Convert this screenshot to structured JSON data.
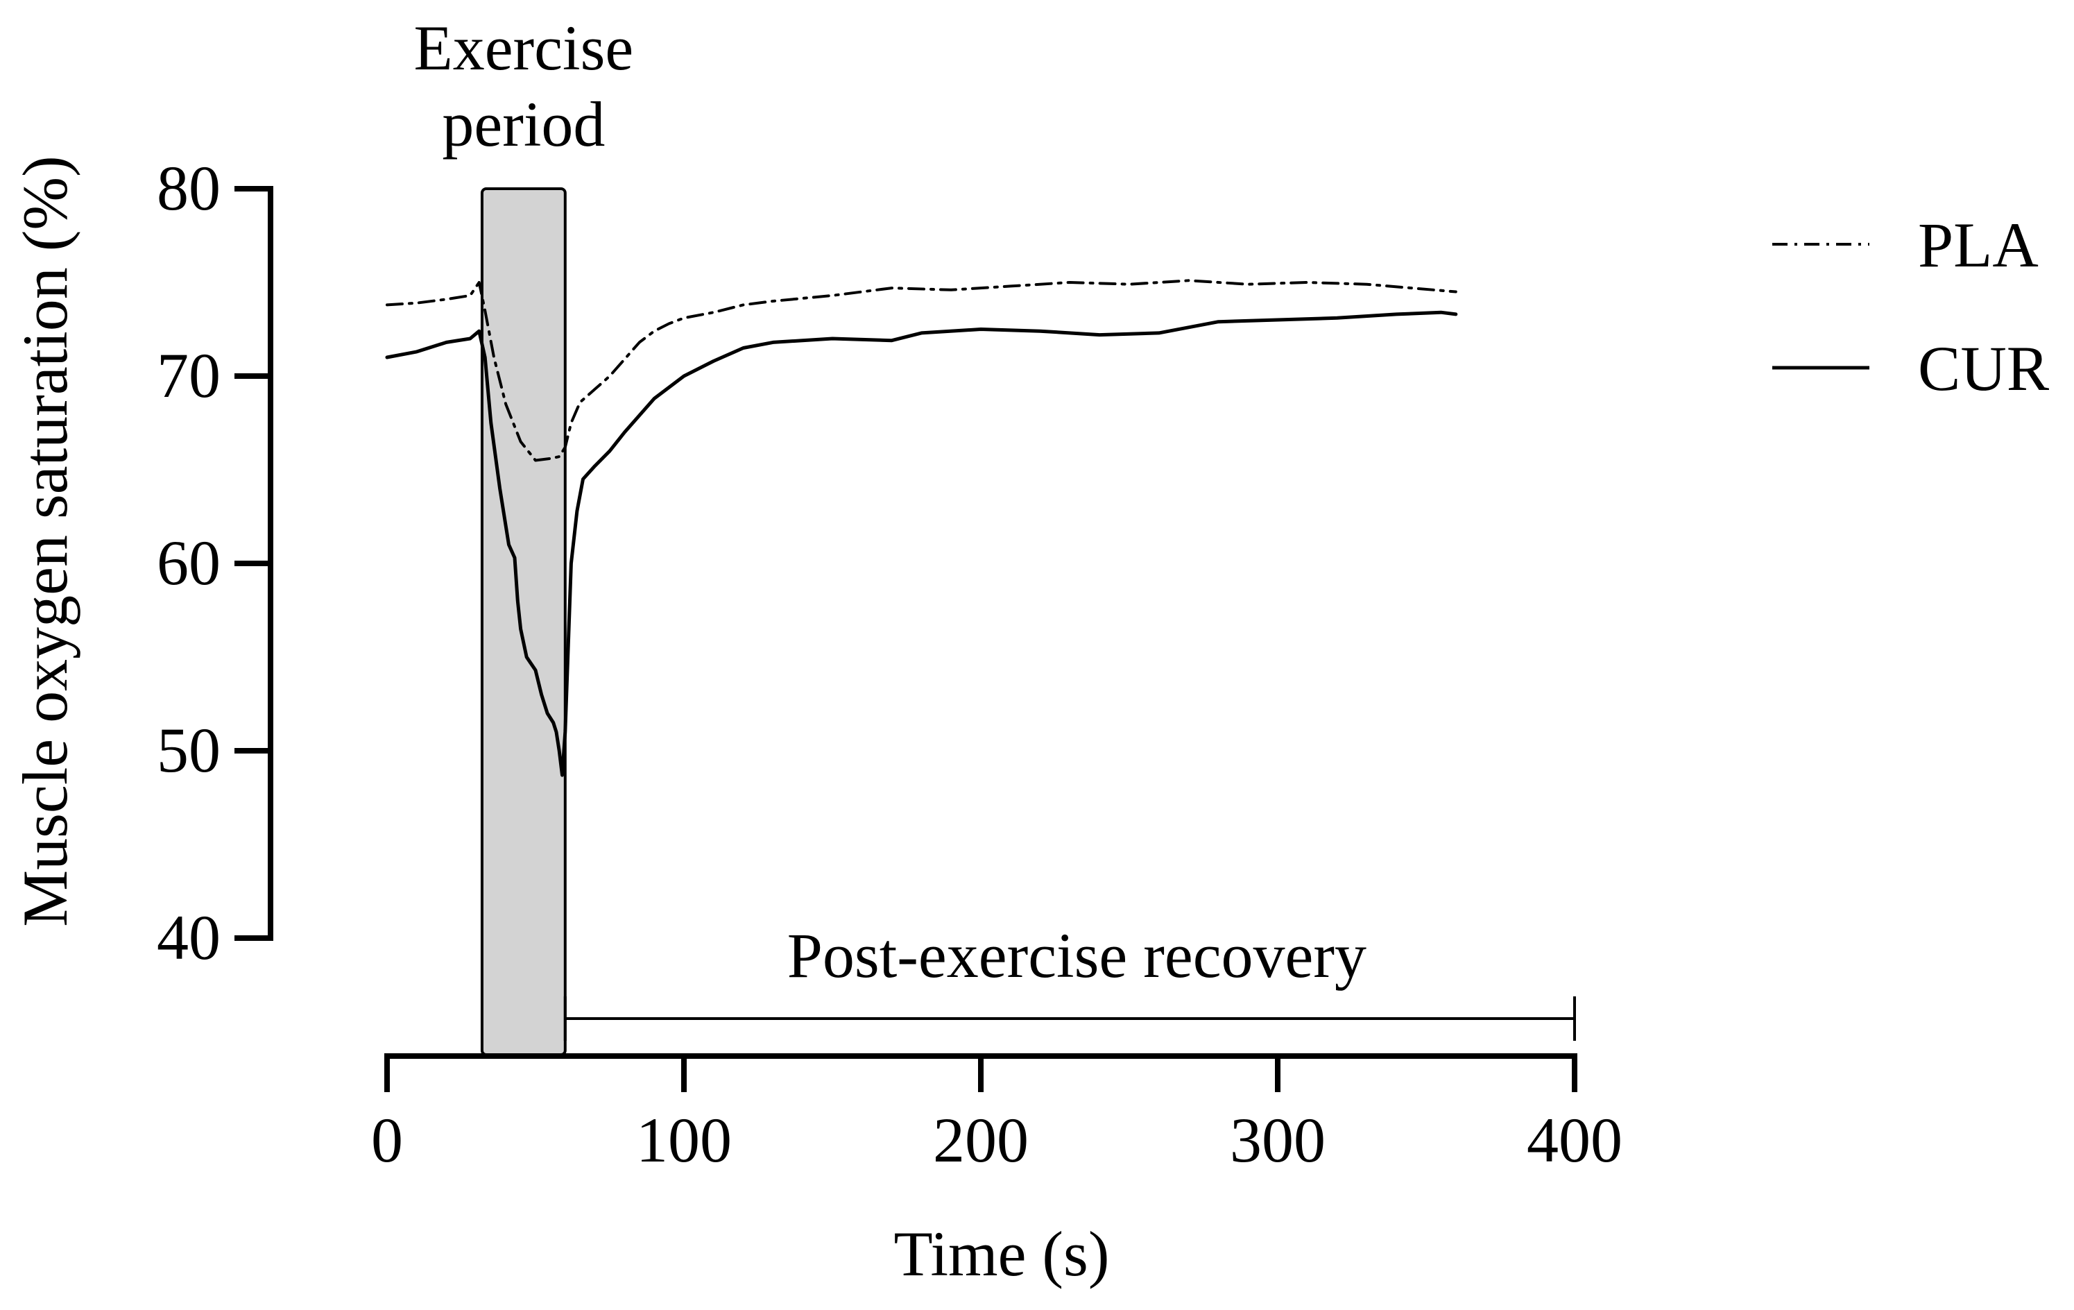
{
  "chart_data": {
    "type": "line",
    "title": "",
    "xlabel": "Time (s)",
    "ylabel": "Muscle oxygen saturation (%)",
    "xlim": [
      0,
      400
    ],
    "ylim": [
      40,
      80
    ],
    "x_ticks": [
      0,
      100,
      200,
      300,
      400
    ],
    "x_tick_labels": [
      "0",
      "100",
      "200",
      "300",
      "400"
    ],
    "y_ticks": [
      40,
      50,
      60,
      70,
      80
    ],
    "y_tick_labels": [
      "40",
      "50",
      "60",
      "70",
      "80"
    ],
    "grid": false,
    "legend_position": "top-right",
    "series": [
      {
        "name": "PLA",
        "style": "dash-dot",
        "x": [
          0,
          10,
          20,
          28,
          31,
          33,
          36,
          40,
          45,
          50,
          55,
          58,
          60,
          62,
          65,
          70,
          75,
          80,
          85,
          90,
          95,
          100,
          110,
          120,
          130,
          150,
          170,
          190,
          210,
          230,
          250,
          270,
          290,
          310,
          330,
          345,
          360
        ],
        "y": [
          73.8,
          73.9,
          74.1,
          74.3,
          75.0,
          73.5,
          71.0,
          68.5,
          66.5,
          65.5,
          65.6,
          65.7,
          66.2,
          67.5,
          68.6,
          69.3,
          70.0,
          70.9,
          71.8,
          72.4,
          72.8,
          73.1,
          73.4,
          73.8,
          74.0,
          74.3,
          74.7,
          74.6,
          74.8,
          75.0,
          74.9,
          75.1,
          74.9,
          75.0,
          74.9,
          74.7,
          74.5
        ]
      },
      {
        "name": "CUR",
        "style": "solid",
        "x": [
          0,
          10,
          20,
          28,
          31,
          33,
          35,
          38,
          41,
          43,
          44,
          45,
          47,
          50,
          52,
          54,
          56,
          57,
          58,
          59,
          60,
          61,
          62,
          64,
          66,
          70,
          75,
          80,
          90,
          100,
          110,
          120,
          130,
          150,
          170,
          180,
          200,
          220,
          240,
          260,
          280,
          300,
          320,
          340,
          355,
          360
        ],
        "y": [
          71.0,
          71.3,
          71.8,
          72.0,
          72.4,
          71.0,
          67.5,
          64.0,
          61.0,
          60.3,
          58.0,
          56.5,
          55.0,
          54.3,
          53.0,
          52.0,
          51.5,
          51.0,
          50.0,
          48.7,
          51.0,
          55.5,
          60.0,
          62.8,
          64.5,
          65.2,
          66.0,
          67.0,
          68.8,
          70.0,
          70.8,
          71.5,
          71.8,
          72.0,
          71.9,
          72.3,
          72.5,
          72.4,
          72.2,
          72.3,
          72.9,
          73.0,
          73.1,
          73.3,
          73.4,
          73.3
        ]
      }
    ],
    "shaded_region": {
      "label": "Exercise period",
      "x_start": 32,
      "x_end": 60
    },
    "range_annotation": {
      "label": "Post-exercise recovery",
      "x_start": 60,
      "x_end": 400
    }
  }
}
